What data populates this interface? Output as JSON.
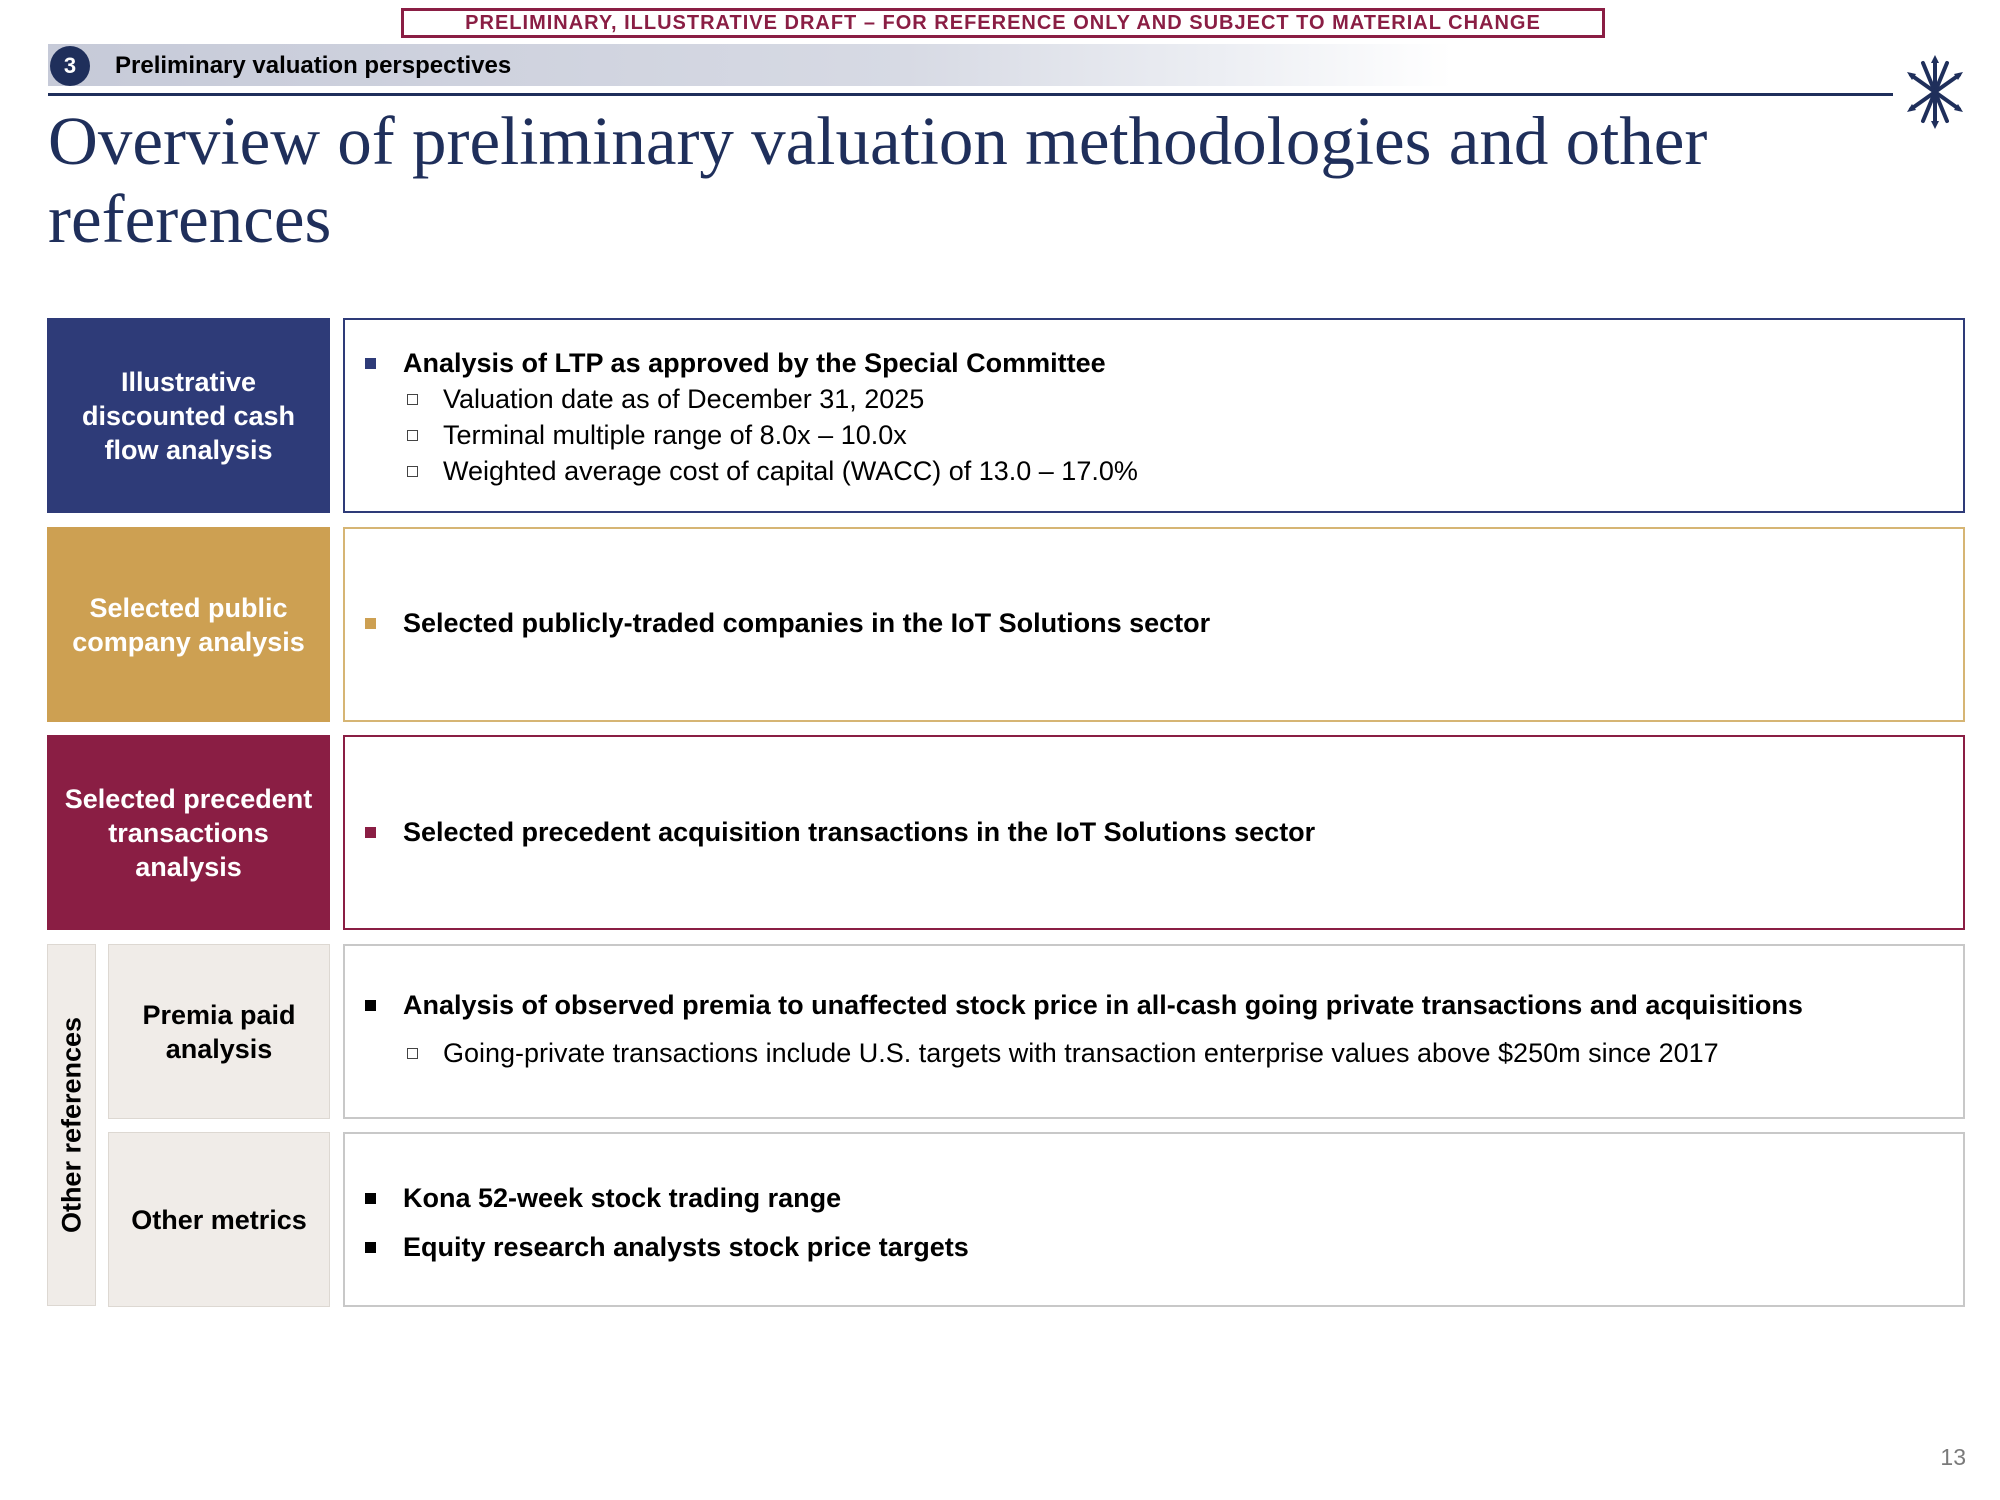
{
  "header": {
    "draft_banner": "PRELIMINARY, ILLUSTRATIVE DRAFT – FOR REFERENCE ONLY AND SUBJECT TO MATERIAL CHANGE",
    "section_number": "3",
    "section_label": "Preliminary valuation perspectives",
    "logo_icon": "starburst-logo-icon"
  },
  "title": "Overview of preliminary valuation methodologies and other references",
  "colors": {
    "navy": "#2e3b78",
    "gold": "#cda052",
    "maroon": "#8a1e44",
    "beige": "#f0ece8"
  },
  "methodologies": [
    {
      "label": "Illustrative discounted cash flow analysis",
      "bullet": "Analysis of LTP as approved by the Special Committee",
      "sub_bullets": [
        "Valuation date as of December 31, 2025",
        "Terminal multiple range of 8.0x – 10.0x",
        "Weighted average cost of capital (WACC) of 13.0 – 17.0%"
      ]
    },
    {
      "label": "Selected public company analysis",
      "bullet": "Selected publicly-traded companies in the IoT Solutions sector"
    },
    {
      "label": "Selected precedent transactions analysis",
      "bullet": "Selected precedent acquisition transactions in the IoT Solutions sector"
    }
  ],
  "other_references": {
    "label": "Other references",
    "premia": {
      "label": "Premia paid analysis",
      "bullet": "Analysis of observed premia to unaffected stock price in all-cash going private transactions and acquisitions",
      "sub_bullet": "Going-private transactions include U.S. targets with transaction enterprise values above $250m since 2017"
    },
    "other_metrics": {
      "label": "Other metrics",
      "bullets": [
        "Kona 52-week stock trading range",
        "Equity research analysts stock price targets"
      ]
    }
  },
  "page_number": "13"
}
